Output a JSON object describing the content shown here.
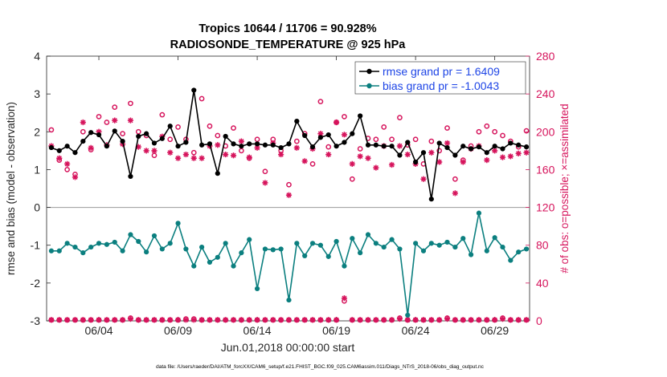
{
  "chart_data": {
    "type": "line",
    "title": "Tropics 10644 / 11706 = 90.928%",
    "subtitle": "RADIOSONDE_TEMPERATURE @ 925 hPa",
    "xlabel": "Jun.01,2018 00:00:00 start",
    "ylabel": "rmse and bias (model - observation)",
    "y2label": "# of obs: o=possible; ×=assimilated",
    "ylim": [
      -3,
      4
    ],
    "y2lim": [
      0,
      280
    ],
    "xlim": [
      0.2,
      30.7
    ],
    "yticks": [
      "-3",
      "-2",
      "-1",
      "0",
      "1",
      "2",
      "3",
      "4"
    ],
    "y2ticks": [
      "0",
      "40",
      "80",
      "120",
      "160",
      "200",
      "240",
      "280"
    ],
    "xticks": [
      {
        "x": 3.5,
        "label": "06/04"
      },
      {
        "x": 8.5,
        "label": "06/09"
      },
      {
        "x": 13.5,
        "label": "06/14"
      },
      {
        "x": 18.5,
        "label": "06/19"
      },
      {
        "x": 23.5,
        "label": "06/24"
      },
      {
        "x": 28.5,
        "label": "06/29"
      }
    ],
    "legend": {
      "position": "top-right",
      "entries": [
        "rmse grand pr = 1.6409",
        "bias grand pr = -1.0043"
      ]
    },
    "colors": {
      "rmse": "#000000",
      "bias": "#0b7f7f",
      "obs": "#d6145c",
      "legend_text": "#1e45e6",
      "zero_line": "#999999"
    },
    "series": [
      {
        "name": "rmse",
        "axis": "left",
        "x": [
          0.5,
          1.0,
          1.5,
          2.0,
          2.5,
          3.0,
          3.5,
          4.0,
          4.5,
          5.0,
          5.5,
          6.0,
          6.5,
          7.0,
          7.5,
          8.0,
          8.5,
          9.0,
          9.5,
          10.0,
          10.5,
          11.0,
          11.5,
          12.0,
          12.5,
          13.0,
          13.5,
          14.0,
          14.5,
          15.0,
          15.5,
          16.0,
          16.5,
          17.0,
          17.5,
          18.0,
          18.5,
          19.0,
          19.5,
          20.0,
          20.5,
          21.0,
          21.5,
          22.0,
          22.5,
          23.0,
          23.5,
          24.0,
          24.5,
          25.0,
          25.5,
          26.0,
          26.5,
          27.0,
          27.5,
          28.0,
          28.5,
          29.0,
          29.5,
          30.0,
          30.5
        ],
        "values": [
          1.58,
          1.5,
          1.62,
          1.45,
          1.75,
          1.98,
          1.92,
          1.62,
          2.02,
          1.75,
          0.82,
          1.88,
          1.95,
          1.7,
          1.82,
          2.15,
          1.62,
          1.72,
          3.1,
          1.65,
          1.68,
          0.9,
          1.88,
          1.68,
          1.62,
          1.68,
          1.68,
          1.65,
          1.65,
          1.58,
          1.68,
          2.28,
          1.9,
          1.6,
          1.85,
          1.92,
          1.62,
          1.72,
          1.95,
          2.42,
          1.65,
          1.65,
          1.62,
          1.62,
          1.38,
          1.72,
          1.2,
          1.45,
          0.22,
          1.7,
          1.58,
          1.38,
          1.62,
          1.55,
          1.6,
          1.45,
          1.62,
          1.55,
          1.7,
          1.65,
          1.6
        ]
      },
      {
        "name": "bias",
        "axis": "left",
        "x": [
          0.5,
          1.0,
          1.5,
          2.0,
          2.5,
          3.0,
          3.5,
          4.0,
          4.5,
          5.0,
          5.5,
          6.0,
          6.5,
          7.0,
          7.5,
          8.0,
          8.5,
          9.0,
          9.5,
          10.0,
          10.5,
          11.0,
          11.5,
          12.0,
          12.5,
          13.0,
          13.5,
          14.0,
          14.5,
          15.0,
          15.5,
          16.0,
          16.5,
          17.0,
          17.5,
          18.0,
          18.5,
          19.0,
          19.5,
          20.0,
          20.5,
          21.0,
          21.5,
          22.0,
          22.5,
          23.0,
          23.5,
          24.0,
          24.5,
          25.0,
          25.5,
          26.0,
          26.5,
          27.0,
          27.5,
          28.0,
          28.5,
          29.0,
          29.5,
          30.0,
          30.5
        ],
        "values": [
          -1.15,
          -1.15,
          -0.95,
          -1.05,
          -1.2,
          -1.05,
          -0.95,
          -0.98,
          -0.92,
          -1.15,
          -0.72,
          -0.9,
          -1.18,
          -0.75,
          -1.1,
          -0.95,
          -0.42,
          -1.1,
          -1.55,
          -1.05,
          -1.45,
          -1.32,
          -0.95,
          -1.55,
          -1.2,
          -0.85,
          -2.15,
          -1.1,
          -1.12,
          -1.1,
          -2.45,
          -0.95,
          -1.28,
          -0.95,
          -1.0,
          -1.3,
          -0.9,
          -1.55,
          -0.82,
          -1.2,
          -0.72,
          -0.95,
          -1.05,
          -0.85,
          -1.1,
          -2.85,
          -0.95,
          -1.15,
          -0.95,
          -1.0,
          -0.92,
          -1.05,
          -0.82,
          -1.25,
          -0.15,
          -1.15,
          -0.8,
          -1.05,
          -1.4,
          -1.18,
          -1.1
        ]
      },
      {
        "name": "obs_possible",
        "axis": "right",
        "marker": "o",
        "x": [
          0.5,
          1.0,
          1.5,
          2.0,
          2.5,
          3.0,
          3.5,
          4.0,
          4.5,
          5.0,
          5.5,
          6.0,
          6.5,
          7.0,
          7.5,
          8.0,
          8.5,
          9.0,
          9.5,
          10.0,
          10.5,
          11.0,
          11.5,
          12.0,
          12.5,
          13.0,
          13.5,
          14.0,
          14.5,
          15.0,
          15.5,
          16.0,
          16.5,
          17.0,
          17.5,
          18.0,
          18.5,
          19.0,
          19.5,
          20.0,
          20.5,
          21.0,
          21.5,
          22.0,
          22.5,
          23.0,
          23.5,
          24.0,
          24.5,
          25.0,
          25.5,
          26.0,
          26.5,
          27.0,
          27.5,
          28.0,
          28.5,
          29.0,
          29.5,
          30.0,
          30.5
        ],
        "values": [
          202,
          170,
          160,
          155,
          200,
          181,
          216,
          210,
          226,
          198,
          230,
          200,
          196,
          175,
          218,
          192,
          205,
          192,
          178,
          235,
          206,
          196,
          185,
          204,
          180,
          172,
          192,
          158,
          192,
          180,
          144,
          190,
          198,
          166,
          232,
          184,
          210,
          216,
          150,
          182,
          193,
          192,
          205,
          192,
          215,
          186,
          192,
          166,
          190,
          180,
          204,
          150,
          170,
          185,
          200,
          206,
          200,
          196,
          190,
          184,
          201
        ]
      },
      {
        "name": "obs_assimilated",
        "axis": "right",
        "marker": "x",
        "x": [
          0.5,
          1.0,
          1.5,
          2.0,
          2.5,
          3.0,
          3.5,
          4.0,
          4.5,
          5.0,
          5.5,
          6.0,
          6.5,
          7.0,
          7.5,
          8.0,
          8.5,
          9.0,
          9.5,
          10.0,
          10.5,
          11.0,
          11.5,
          12.0,
          12.5,
          13.0,
          13.5,
          14.0,
          14.5,
          15.0,
          15.5,
          16.0,
          16.5,
          17.0,
          17.5,
          18.0,
          18.5,
          19.0,
          19.5,
          20.0,
          20.5,
          21.0,
          21.5,
          22.0,
          22.5,
          23.0,
          23.5,
          24.0,
          24.5,
          25.0,
          25.5,
          26.0,
          26.5,
          27.0,
          27.5,
          28.0,
          28.5,
          29.0,
          29.5,
          30.0,
          30.5
        ],
        "values": [
          185,
          172,
          166,
          152,
          210,
          183,
          200,
          186,
          212,
          187,
          212,
          184,
          180,
          180,
          195,
          178,
          172,
          176,
          172,
          172,
          185,
          186,
          176,
          175,
          190,
          173,
          183,
          146,
          188,
          176,
          133,
          183,
          169,
          182,
          198,
          176,
          210,
          197,
          166,
          174,
          172,
          162,
          185,
          165,
          185,
          176,
          166,
          150,
          178,
          168,
          188,
          135,
          168,
          182,
          185,
          170,
          180,
          173,
          174,
          177,
          178
        ]
      },
      {
        "name": "obs_possible_bottom",
        "axis": "right",
        "marker": "o",
        "x": [
          0.5,
          1.0,
          1.5,
          2.0,
          2.5,
          3.0,
          3.5,
          4.0,
          4.5,
          5.0,
          5.5,
          6.0,
          6.5,
          7.0,
          7.5,
          8.0,
          8.5,
          9.0,
          9.5,
          10.0,
          10.5,
          11.0,
          11.5,
          12.0,
          12.5,
          13.0,
          13.5,
          14.0,
          14.5,
          15.0,
          15.5,
          16.0,
          16.5,
          17.0,
          17.5,
          18.0,
          18.5,
          19.0,
          19.5,
          20.0,
          20.5,
          21.0,
          21.5,
          22.0,
          22.5,
          23.0,
          23.5,
          24.0,
          24.5,
          25.0,
          25.5,
          26.0,
          26.5,
          27.0,
          27.5,
          28.0,
          28.5,
          29.0,
          29.5,
          30.0,
          30.5
        ],
        "values": [
          1,
          1,
          1,
          1,
          1,
          1,
          1,
          1,
          1,
          1,
          3,
          1,
          1,
          1,
          1,
          1,
          1,
          2,
          2,
          1,
          1,
          1,
          1,
          1,
          1,
          1,
          1,
          1,
          1,
          1,
          1,
          1,
          1,
          1,
          1,
          1,
          1,
          21,
          1,
          1,
          1,
          1,
          1,
          1,
          3,
          1,
          1,
          1,
          1,
          1,
          3,
          1,
          1,
          1,
          1,
          1,
          1,
          3,
          1,
          1,
          1
        ]
      },
      {
        "name": "obs_assimilated_bottom",
        "axis": "right",
        "marker": "x",
        "x": [
          0.5,
          1.0,
          1.5,
          2.0,
          2.5,
          3.0,
          3.5,
          4.0,
          4.5,
          5.0,
          5.5,
          6.0,
          6.5,
          7.0,
          7.5,
          8.0,
          8.5,
          9.0,
          9.5,
          10.0,
          10.5,
          11.0,
          11.5,
          12.0,
          12.5,
          13.0,
          13.5,
          14.0,
          14.5,
          15.0,
          15.5,
          16.0,
          16.5,
          17.0,
          17.5,
          18.0,
          18.5,
          19.0,
          19.5,
          20.0,
          20.5,
          21.0,
          21.5,
          22.0,
          22.5,
          23.0,
          23.5,
          24.0,
          24.5,
          25.0,
          25.5,
          26.0,
          26.5,
          27.0,
          27.5,
          28.0,
          28.5,
          29.0,
          29.5,
          30.0,
          30.5
        ],
        "values": [
          1,
          1,
          1,
          1,
          1,
          1,
          1,
          1,
          1,
          1,
          2,
          1,
          1,
          1,
          1,
          1,
          1,
          1,
          1,
          1,
          1,
          1,
          1,
          1,
          1,
          1,
          1,
          1,
          1,
          1,
          1,
          1,
          1,
          1,
          1,
          1,
          1,
          24,
          1,
          1,
          1,
          1,
          1,
          1,
          2,
          1,
          1,
          1,
          1,
          1,
          2,
          1,
          1,
          1,
          1,
          1,
          1,
          2,
          1,
          1,
          1
        ]
      }
    ]
  },
  "footer": {
    "datafile": "data file: /Users/raeder/DAI/ATM_forcXX/CAM6_setup/f.e21.FHIST_BGC.f09_025.CAM6assim.011/Diags_NTrS_2018-06/obs_diag_output.nc"
  }
}
